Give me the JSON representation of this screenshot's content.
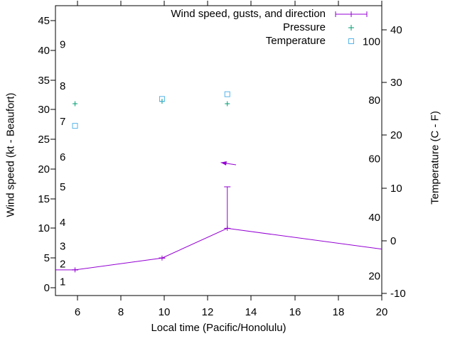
{
  "window": {
    "background": "#ffffff",
    "text_color": "#000000"
  },
  "legend": {
    "entries": [
      {
        "series": "wind",
        "label": "Wind speed, gusts, and direction"
      },
      {
        "series": "pressure",
        "label": "Pressure"
      },
      {
        "series": "temperature",
        "label": "Temperature"
      }
    ]
  },
  "chart_data": {
    "type": "line",
    "title": "",
    "background": "#ffffff",
    "grid": false,
    "legend_position": "top-right-inside",
    "x_axis": {
      "label": "Local time (Pacific/Honolulu)",
      "min": 5,
      "max": 20,
      "ticks": [
        6,
        8,
        10,
        12,
        14,
        16,
        18,
        20
      ]
    },
    "y_left": {
      "label": "Wind speed (kt - Beaufort)",
      "min": -1.32,
      "max": 47.52,
      "ticks": [
        0,
        5,
        10,
        15,
        20,
        25,
        30,
        35,
        40,
        45
      ],
      "beaufort": [
        {
          "label": "1",
          "kt": 1
        },
        {
          "label": "2",
          "kt": 4
        },
        {
          "label": "3",
          "kt": 7
        },
        {
          "label": "4",
          "kt": 11
        },
        {
          "label": "5",
          "kt": 17
        },
        {
          "label": "6",
          "kt": 22
        },
        {
          "label": "7",
          "kt": 28
        },
        {
          "label": "8",
          "kt": 34
        },
        {
          "label": "9",
          "kt": 41
        }
      ]
    },
    "y_right": {
      "label": "Temperature (C - F)",
      "min": -10.4,
      "max": 44.6,
      "ticks_c": [
        40,
        30,
        20,
        10,
        0,
        -10
      ],
      "ticks_f": [
        100,
        80,
        60,
        40,
        20
      ]
    },
    "series": [
      {
        "name": "wind",
        "label": "Wind speed, gusts, and direction",
        "color": "#9400d3",
        "axis": "left",
        "style": "errorbar-line",
        "line": [
          [
            5.0,
            3
          ],
          [
            5.9,
            3
          ],
          [
            9.9,
            5
          ],
          [
            12.9,
            10
          ],
          [
            20,
            6.5
          ]
        ],
        "points": [
          {
            "x": 5.9,
            "wind": 3,
            "gust": 3
          },
          {
            "x": 9.9,
            "wind": 5,
            "gust": 5
          },
          {
            "x": 12.9,
            "wind": 10,
            "gust": 17
          }
        ],
        "direction_arrow": {
          "from": [
            13.3,
            20.7
          ],
          "to": [
            12.6,
            21.1
          ]
        }
      },
      {
        "name": "pressure",
        "label": "Pressure",
        "color": "#009e73",
        "axis": "left",
        "style": "points-plus",
        "points": [
          [
            5.9,
            31.0
          ],
          [
            9.9,
            31.4
          ],
          [
            12.9,
            31.0
          ]
        ]
      },
      {
        "name": "temperature",
        "label": "Temperature",
        "color": "#56b4e9",
        "axis": "right",
        "style": "points-open-square",
        "points_c": [
          [
            5.9,
            21.8
          ],
          [
            9.9,
            26.9
          ],
          [
            12.9,
            27.8
          ]
        ]
      }
    ]
  }
}
